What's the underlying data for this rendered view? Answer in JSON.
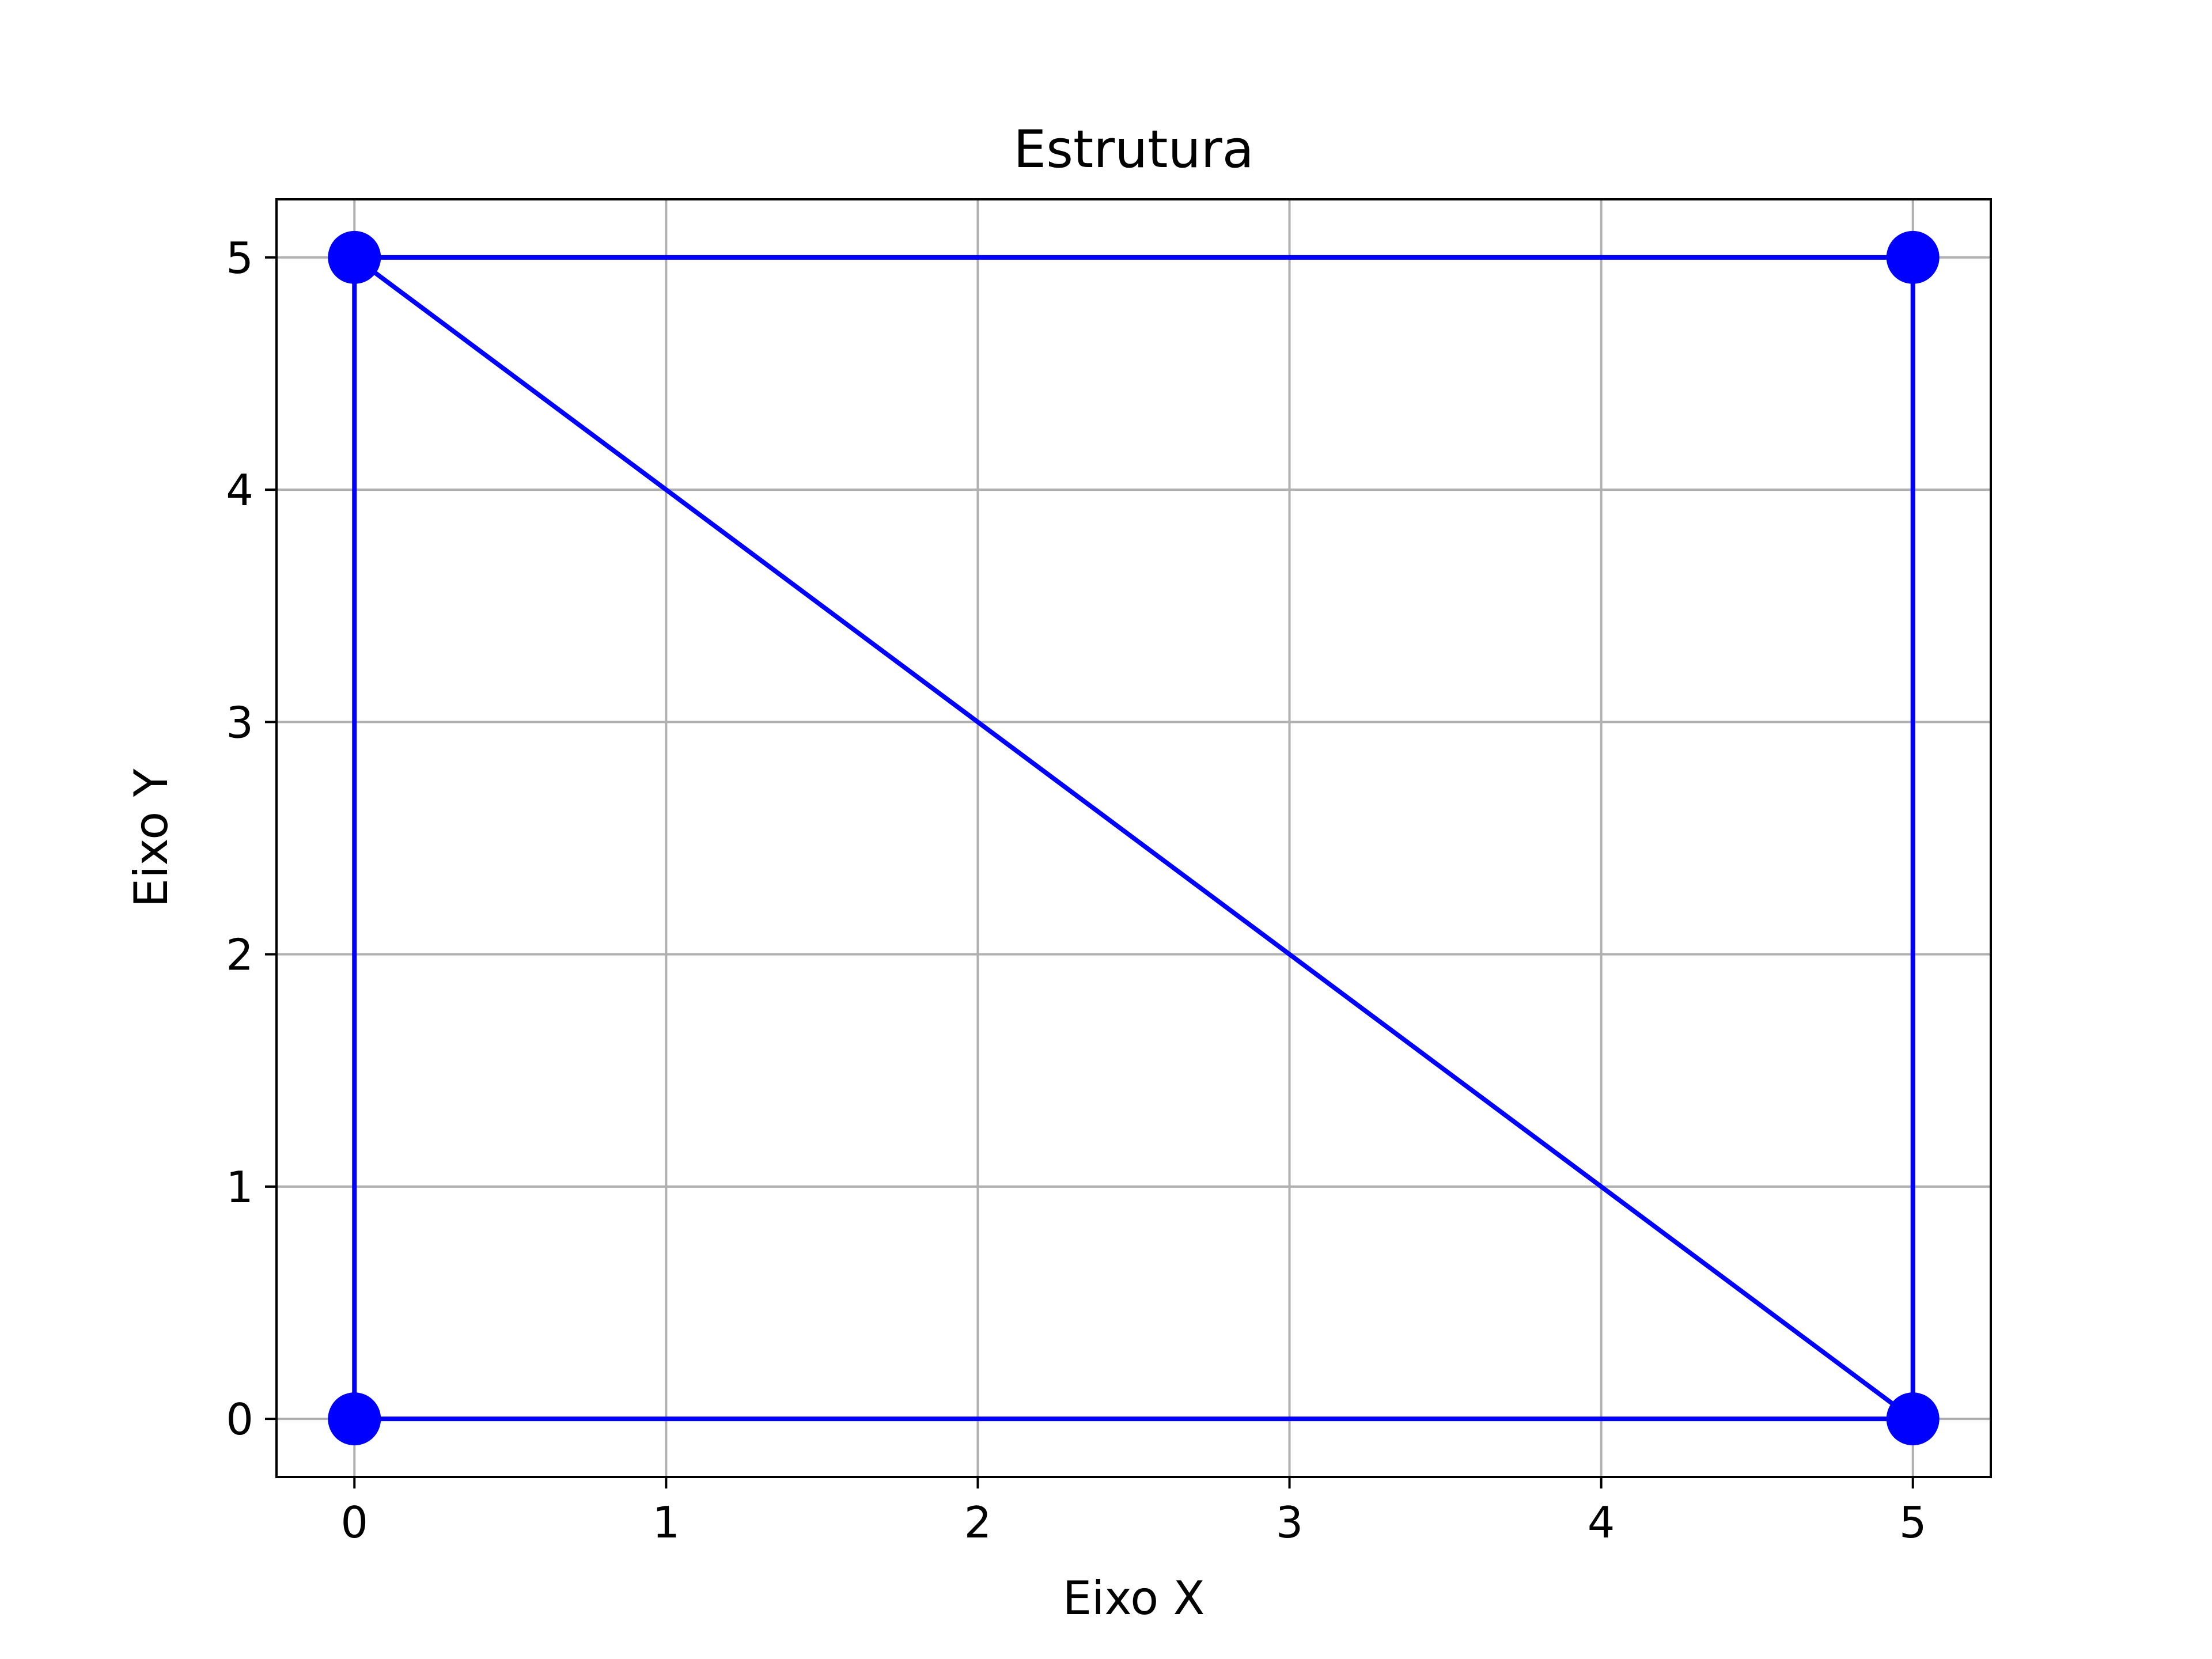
{
  "chart_data": {
    "type": "line",
    "title": "Estrutura",
    "xlabel": "Eixo X",
    "ylabel": "Eixo Y",
    "xlim": [
      -0.25,
      5.25
    ],
    "ylim": [
      -0.25,
      5.25
    ],
    "xticks": [
      "0",
      "1",
      "2",
      "3",
      "4",
      "5"
    ],
    "yticks": [
      "0",
      "1",
      "2",
      "3",
      "4",
      "5"
    ],
    "grid": true,
    "nodes": [
      {
        "x": 0,
        "y": 0
      },
      {
        "x": 5,
        "y": 0
      },
      {
        "x": 5,
        "y": 5
      },
      {
        "x": 0,
        "y": 5
      }
    ],
    "members": [
      {
        "x": [
          0,
          5
        ],
        "y": [
          0,
          0
        ]
      },
      {
        "x": [
          5,
          5
        ],
        "y": [
          0,
          5
        ]
      },
      {
        "x": [
          5,
          0
        ],
        "y": [
          5,
          5
        ]
      },
      {
        "x": [
          0,
          0
        ],
        "y": [
          5,
          0
        ]
      },
      {
        "x": [
          0,
          5
        ],
        "y": [
          5,
          0
        ]
      }
    ],
    "line_color": "#0000ff",
    "marker_color": "#0000ff",
    "grid_color": "#b0b0b0"
  }
}
